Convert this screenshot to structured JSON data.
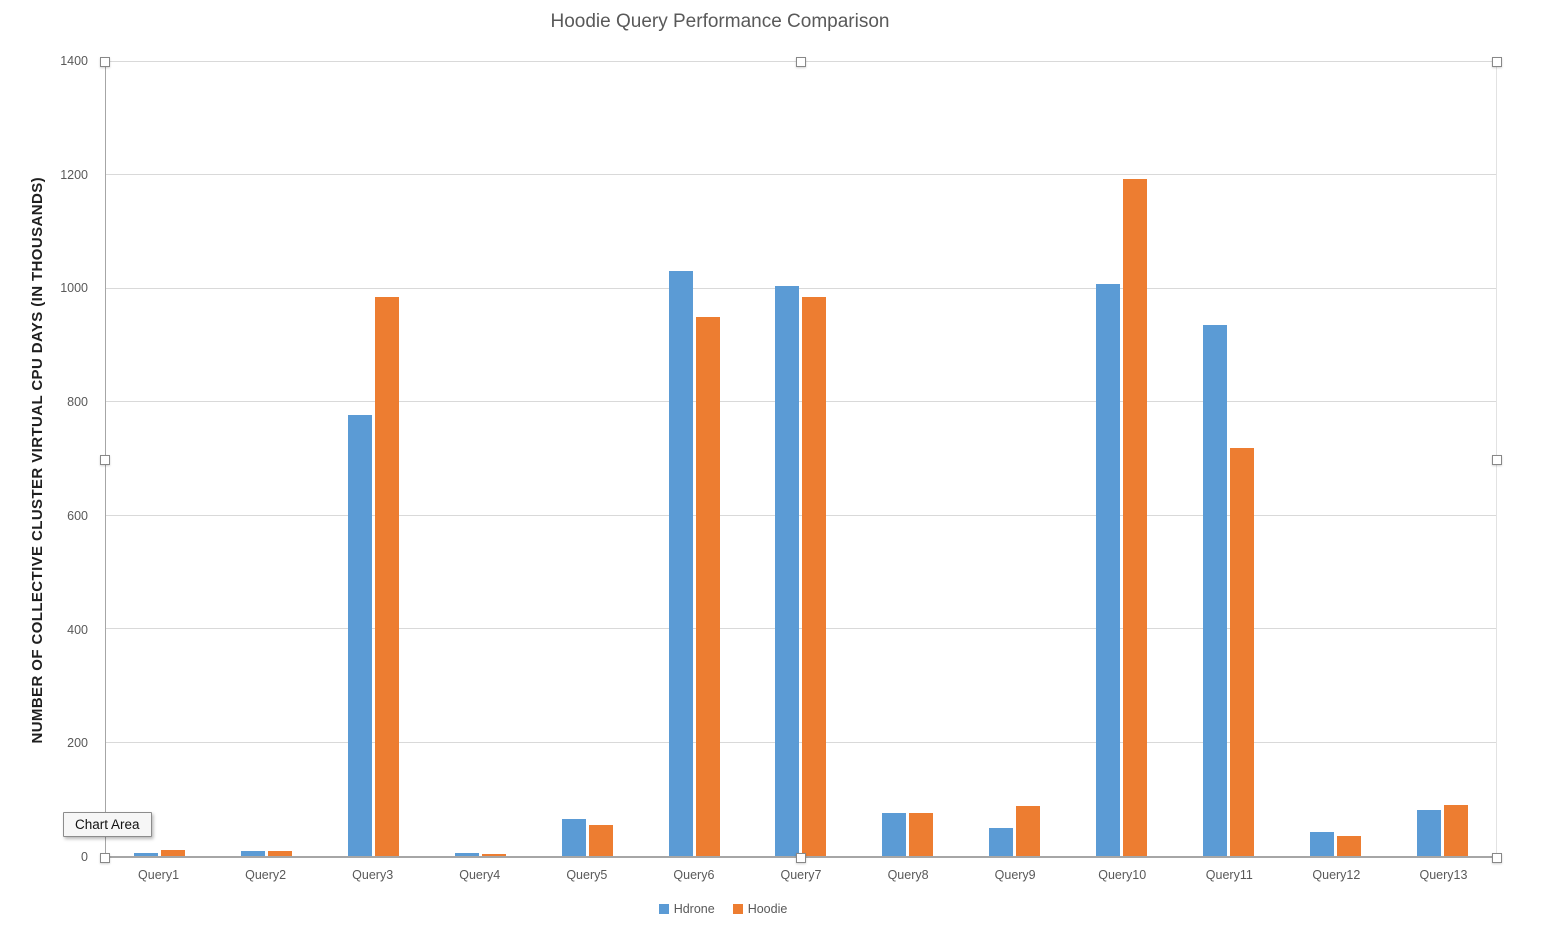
{
  "title": "Hoodie Query Performance Comparison",
  "tooltip": {
    "label": "Chart Area"
  },
  "legend": {
    "position": "bottom"
  },
  "colors": {
    "hdrone": "#5B9BD5",
    "hoodie": "#ED7D31",
    "gridline": "#D9D9D9",
    "axis": "#A6A6A6",
    "text_muted": "#595959"
  },
  "chart_data": {
    "type": "bar",
    "title": "Hoodie Query Performance Comparison",
    "xlabel": "",
    "ylabel": "NUMBER OF COLLECTIVE CLUSTER VIRTUAL CPU DAYS (IN THOUSANDS)",
    "ylim": [
      0,
      1400
    ],
    "ytick_interval": 200,
    "ytick_labels": [
      "0",
      "200",
      "400",
      "600",
      "800",
      "1000",
      "1200",
      "1400"
    ],
    "grid": true,
    "legend_position": "bottom",
    "categories": [
      "Query1",
      "Query2",
      "Query3",
      "Query4",
      "Query5",
      "Query6",
      "Query7",
      "Query8",
      "Query9",
      "Query10",
      "Query11",
      "Query12",
      "Query13"
    ],
    "series": [
      {
        "name": "Hdrone",
        "color": "#5B9BD5",
        "values": [
          5,
          8,
          778,
          5,
          65,
          1032,
          1005,
          76,
          49,
          1008,
          936,
          42,
          81
        ]
      },
      {
        "name": "Hoodie",
        "color": "#ED7D31",
        "values": [
          10,
          8,
          985,
          4,
          54,
          950,
          985,
          76,
          88,
          1193,
          719,
          35,
          90
        ]
      }
    ]
  }
}
